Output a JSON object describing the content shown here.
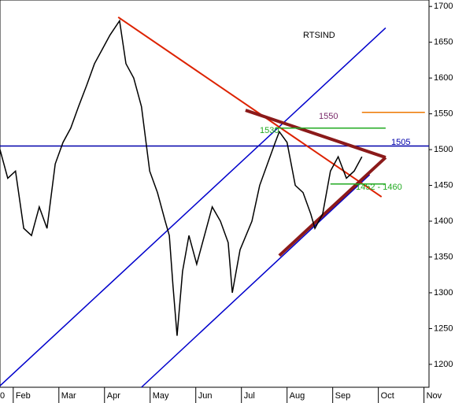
{
  "chart_data": {
    "type": "line",
    "series": [
      {
        "name": "RTSIND",
        "color": "#000000",
        "x": [
          1.71,
          1.88,
          2.05,
          2.23,
          2.4,
          2.57,
          2.74,
          2.92,
          3.09,
          3.26,
          3.43,
          3.61,
          3.78,
          3.95,
          4.12,
          4.33,
          4.47,
          4.64,
          4.81,
          4.99,
          5.16,
          5.33,
          5.42,
          5.5,
          5.59,
          5.71,
          5.85,
          6.02,
          6.19,
          6.36,
          6.54,
          6.71,
          6.8,
          6.97,
          7.23,
          7.4,
          7.57,
          7.74,
          7.83,
          8.0,
          8.18,
          8.35,
          8.52,
          8.61,
          8.78,
          8.95,
          9.12,
          9.3,
          9.47,
          9.64
        ],
        "values": [
          1500,
          1460,
          1470,
          1390,
          1380,
          1420,
          1390,
          1480,
          1510,
          1530,
          1560,
          1590,
          1620,
          1640,
          1660,
          1680,
          1620,
          1600,
          1560,
          1470,
          1440,
          1400,
          1380,
          1310,
          1240,
          1330,
          1380,
          1340,
          1380,
          1420,
          1400,
          1370,
          1300,
          1360,
          1400,
          1450,
          1480,
          1510,
          1525,
          1510,
          1450,
          1440,
          1410,
          1390,
          1410,
          1470,
          1490,
          1460,
          1470,
          1490
        ]
      }
    ],
    "lines": [
      {
        "color": "#0000cc",
        "x": [
          1.71,
          10.16
        ],
        "y": [
          1170,
          1670
        ]
      },
      {
        "color": "#0000cc",
        "x": [
          4.81,
          9.81
        ],
        "y": [
          1168,
          1465
        ]
      },
      {
        "color": "#0000aa",
        "x": [
          1.71,
          11.11
        ],
        "y": [
          1505,
          1505
        ]
      },
      {
        "color": "#dd2200",
        "x": [
          4.3,
          10.07
        ],
        "y": [
          1685,
          1434
        ]
      },
      {
        "color": "#8b1a1a",
        "x": [
          7.09,
          10.16
        ],
        "y": [
          1555,
          1489
        ]
      },
      {
        "color": "#8b1a1a",
        "x": [
          7.83,
          10.16
        ],
        "y": [
          1352,
          1489
        ]
      },
      {
        "color": "#ee7700",
        "x": [
          9.64,
          11.02
        ],
        "y": [
          1552,
          1552
        ]
      },
      {
        "color": "#22aa22",
        "x": [
          7.74,
          10.16
        ],
        "y": [
          1530,
          1530
        ]
      },
      {
        "color": "#22aa22",
        "x": [
          8.95,
          10.16
        ],
        "y": [
          1452,
          1452
        ]
      }
    ],
    "annotations": [
      "1550",
      "1505",
      "1530",
      "1452 - 1460",
      "0"
    ],
    "xlim": [
      1.71,
      11.11
    ],
    "xticks": [
      {
        "value": 2,
        "label": "Feb"
      },
      {
        "value": 3,
        "label": "Mar"
      },
      {
        "value": 4,
        "label": "Apr"
      },
      {
        "value": 5,
        "label": "May"
      },
      {
        "value": 6,
        "label": "Jun"
      },
      {
        "value": 7,
        "label": "Jul"
      },
      {
        "value": 8,
        "label": "Aug"
      },
      {
        "value": 9,
        "label": "Sep"
      },
      {
        "value": 10,
        "label": "Oct"
      },
      {
        "value": 11,
        "label": "Nov"
      }
    ],
    "ylim": [
      1168,
      1709
    ],
    "yticks": [
      1200,
      1250,
      1300,
      1350,
      1400,
      1450,
      1500,
      1550,
      1600,
      1650,
      1700
    ]
  }
}
